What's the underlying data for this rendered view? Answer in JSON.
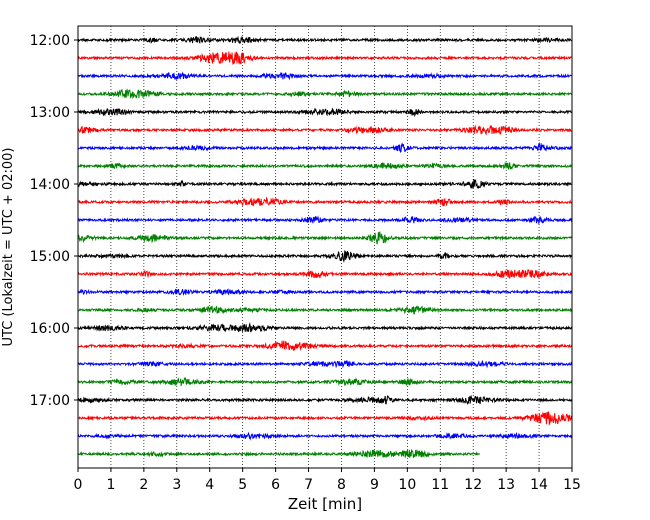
{
  "chart_data": {
    "type": "line",
    "xlabel": "Zeit  [min]",
    "ylabel": "UTC (Lokalzeit = UTC + 02:00)",
    "xlim": [
      0,
      15
    ],
    "x_ticks": [
      "0",
      "1",
      "2",
      "3",
      "4",
      "5",
      "6",
      "7",
      "8",
      "9",
      "10",
      "11",
      "12",
      "13",
      "14",
      "15"
    ],
    "y_ticks": [
      {
        "label": "12:00",
        "hour": "12:00"
      },
      {
        "label": "13:00",
        "hour": "13:00"
      },
      {
        "label": "14:00",
        "hour": "14:00"
      },
      {
        "label": "15:00",
        "hour": "15:00"
      },
      {
        "label": "16:00",
        "hour": "16:00"
      },
      {
        "label": "17:00",
        "hour": "17:00"
      }
    ],
    "trace_interval_min": 15,
    "first_trace": "12:00",
    "color_cycle": [
      "#000000",
      "#ff0000",
      "#0000ff",
      "#008000"
    ],
    "grid_x": true,
    "series": [
      {
        "start": "12:00",
        "color": "#000000",
        "end_min": 15
      },
      {
        "start": "12:15",
        "color": "#ff0000",
        "end_min": 15
      },
      {
        "start": "12:30",
        "color": "#0000ff",
        "end_min": 15
      },
      {
        "start": "12:45",
        "color": "#008000",
        "end_min": 15
      },
      {
        "start": "13:00",
        "color": "#000000",
        "end_min": 15
      },
      {
        "start": "13:15",
        "color": "#ff0000",
        "end_min": 15
      },
      {
        "start": "13:30",
        "color": "#0000ff",
        "end_min": 15
      },
      {
        "start": "13:45",
        "color": "#008000",
        "end_min": 15
      },
      {
        "start": "14:00",
        "color": "#000000",
        "end_min": 15
      },
      {
        "start": "14:15",
        "color": "#ff0000",
        "end_min": 15
      },
      {
        "start": "14:30",
        "color": "#0000ff",
        "end_min": 15
      },
      {
        "start": "14:45",
        "color": "#008000",
        "end_min": 15
      },
      {
        "start": "15:00",
        "color": "#000000",
        "end_min": 15
      },
      {
        "start": "15:15",
        "color": "#ff0000",
        "end_min": 15
      },
      {
        "start": "15:30",
        "color": "#0000ff",
        "end_min": 15
      },
      {
        "start": "15:45",
        "color": "#008000",
        "end_min": 15
      },
      {
        "start": "16:00",
        "color": "#000000",
        "end_min": 15
      },
      {
        "start": "16:15",
        "color": "#ff0000",
        "end_min": 15
      },
      {
        "start": "16:30",
        "color": "#0000ff",
        "end_min": 15
      },
      {
        "start": "16:45",
        "color": "#008000",
        "end_min": 15
      },
      {
        "start": "17:00",
        "color": "#000000",
        "end_min": 15
      },
      {
        "start": "17:15",
        "color": "#ff0000",
        "end_min": 15
      },
      {
        "start": "17:30",
        "color": "#0000ff",
        "end_min": 15
      },
      {
        "start": "17:45",
        "color": "#008000",
        "end_min": 12.2
      }
    ]
  }
}
